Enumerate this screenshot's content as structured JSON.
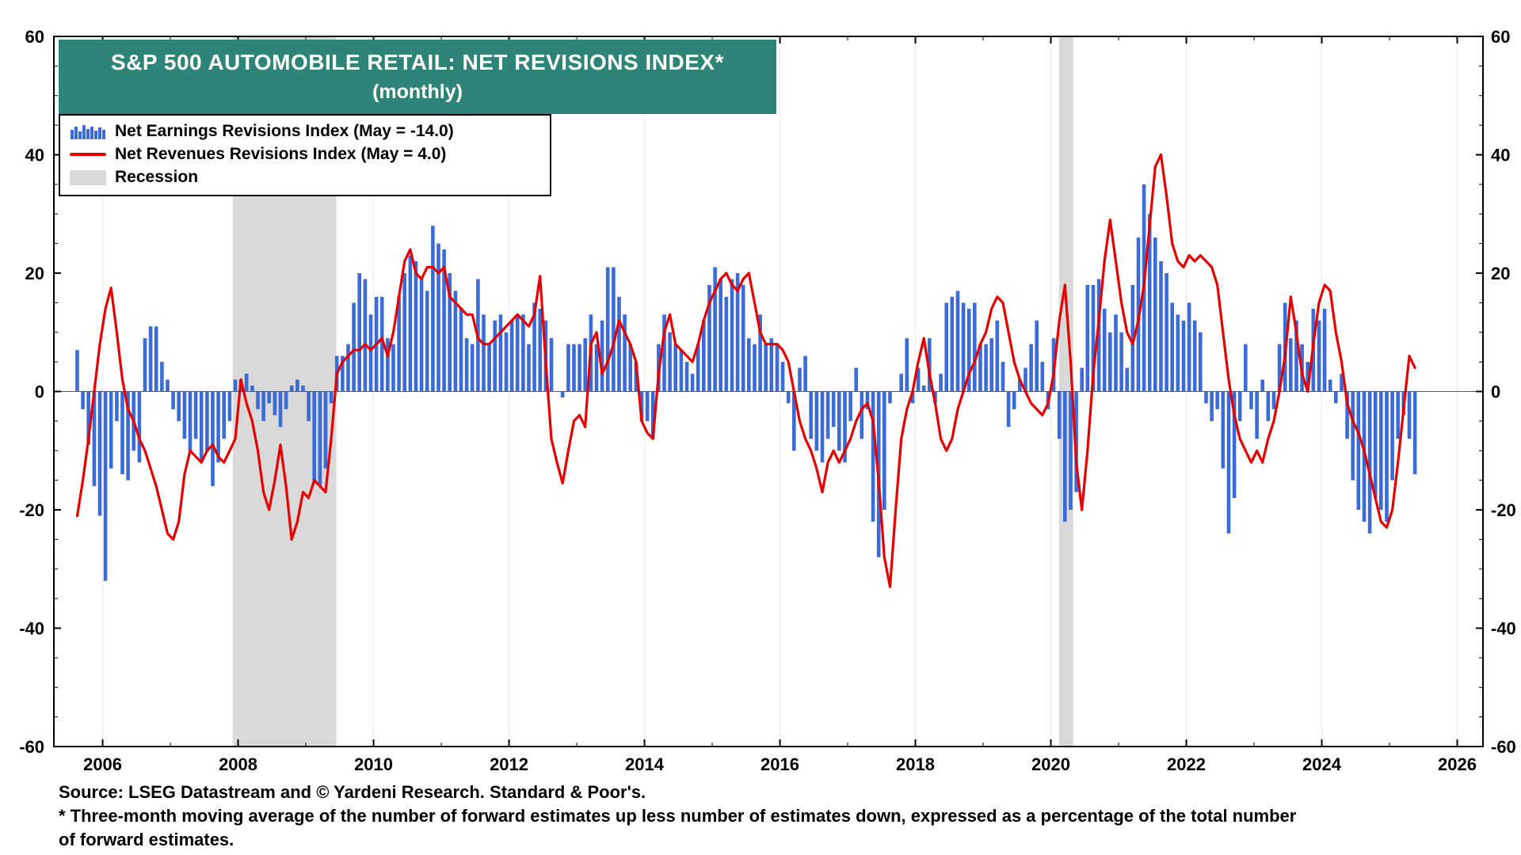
{
  "chart": {
    "title": "S&P 500 AUTOMOBILE RETAIL: NET REVISIONS INDEX*",
    "subtitle": "(monthly)",
    "title_bg": "#2E8476"
  },
  "legend": {
    "earnings_label": "Net Earnings Revisions Index (May  = -14.0)",
    "revenues_label": "Net Revenues Revisions Index (May  = 4.0)",
    "recession_label": "Recession"
  },
  "footer": {
    "source": "Source: LSEG Datastream and © Yardeni Research. Standard & Poor's.",
    "note1": "* Three-month moving average of the number of forward estimates up less number of estimates down, expressed as a percentage of the total number",
    "note2": " of forward estimates."
  },
  "chart_data": {
    "type": "bar",
    "title": "S&P 500 AUTOMOBILE RETAIL: NET REVISIONS INDEX* (monthly)",
    "frequency": "monthly",
    "start": {
      "year": 2005,
      "month": 8
    },
    "end": {
      "year": 2025,
      "month": 5
    },
    "ylim": [
      -60,
      60
    ],
    "y_major": 20,
    "y_minor": 5,
    "x_range": [
      2005.28,
      2026.38
    ],
    "x_label_years": [
      2006,
      2008,
      2010,
      2012,
      2014,
      2016,
      2018,
      2020,
      2022,
      2024,
      2026
    ],
    "grid": "light vertical lines at even years",
    "legend_position": "top-left",
    "recession_color": "#D9D9D9",
    "grid_color": "#ECECEC",
    "recessions": [
      [
        2007.92,
        2009.45
      ],
      [
        2020.12,
        2020.33
      ]
    ],
    "series": [
      {
        "name": "Net Earnings Revisions Index",
        "type": "bar",
        "color": "#3A6BD8",
        "latest_label": "May = -14.0",
        "values": [
          7,
          -3,
          -9,
          -16,
          -21,
          -32,
          -13,
          -5,
          -14,
          -15,
          -10,
          -12,
          9,
          11,
          11,
          5,
          2,
          -3,
          -5,
          -8,
          -10,
          -8,
          -12,
          -10,
          -16,
          -12,
          -8,
          -5,
          2,
          2,
          3,
          1,
          -3,
          -5,
          -2,
          -4,
          -6,
          -3,
          1,
          2,
          1,
          -5,
          -15,
          -16,
          -13,
          -2,
          6,
          6,
          8,
          15,
          20,
          19,
          13,
          16,
          16,
          9,
          8,
          16,
          20,
          23,
          22,
          19,
          17,
          28,
          25,
          24,
          20,
          17,
          14,
          9,
          8,
          19,
          13,
          8,
          12,
          13,
          10,
          12,
          13,
          13,
          8,
          15,
          14,
          12,
          9,
          0,
          -1,
          8,
          8,
          8,
          9,
          13,
          8,
          12,
          21,
          21,
          16,
          13,
          8,
          5,
          -5,
          -5,
          -8,
          8,
          13,
          10,
          8,
          7,
          5,
          3,
          8,
          12,
          18,
          21,
          19,
          16,
          19,
          20,
          18,
          9,
          8,
          13,
          8,
          9,
          8,
          5,
          -2,
          -10,
          4,
          6,
          -8,
          -10,
          -12,
          -8,
          -6,
          -10,
          -12,
          -5,
          4,
          -8,
          -3,
          -22,
          -28,
          -20,
          -2,
          0,
          3,
          9,
          -2,
          4,
          1,
          9,
          -2,
          3,
          15,
          16,
          17,
          15,
          14,
          15,
          8,
          8,
          9,
          12,
          5,
          -6,
          -3,
          2,
          4,
          8,
          12,
          5,
          -3,
          9,
          -8,
          -22,
          -20,
          -17,
          4,
          18,
          18,
          19,
          14,
          10,
          13,
          10,
          4,
          18,
          26,
          35,
          30,
          26,
          22,
          20,
          15,
          13,
          12,
          15,
          12,
          10,
          -2,
          -5,
          -3,
          -13,
          -24,
          -18,
          -5,
          8,
          -3,
          -8,
          2,
          -5,
          -3,
          8,
          15,
          9,
          12,
          8,
          5,
          14,
          12,
          14,
          2,
          -2,
          3,
          -8,
          -15,
          -20,
          -22,
          -24,
          -18,
          -20,
          -22,
          -15,
          -8,
          -4,
          -8,
          -14
        ]
      },
      {
        "name": "Net Revenues Revisions Index",
        "type": "line",
        "color": "#E60000",
        "latest_label": "May = 4.0",
        "values": [
          -21,
          -15,
          -8,
          0,
          8,
          14,
          17.5,
          10,
          2,
          -3,
          -5,
          -8,
          -10,
          -13,
          -16,
          -20,
          -24,
          -25,
          -22,
          -14,
          -10,
          -11,
          -12,
          -10,
          -9,
          -11,
          -12,
          -10,
          -8,
          2,
          -2,
          -5,
          -10,
          -17,
          -20,
          -15,
          -9,
          -16,
          -25,
          -22,
          -17,
          -18,
          -15,
          -16,
          -17,
          -8,
          3,
          5,
          6,
          7,
          7,
          8,
          7,
          8,
          9,
          6,
          10,
          16,
          22,
          24,
          20,
          19,
          21,
          21,
          20,
          21,
          16,
          15,
          14,
          13,
          13,
          9,
          8,
          8,
          9,
          10,
          11,
          12,
          13,
          12,
          11,
          13,
          19.5,
          5,
          -8,
          -12,
          -15.5,
          -10,
          -5,
          -4,
          -6,
          8,
          10,
          3,
          5,
          8,
          12,
          10,
          8,
          5,
          -5,
          -7,
          -8,
          3,
          10,
          13,
          8,
          7,
          6,
          5,
          8,
          12,
          15,
          17,
          19,
          20,
          18,
          17,
          19,
          20,
          15,
          10,
          8,
          8,
          8,
          7,
          5,
          0,
          -5,
          -8,
          -10,
          -13,
          -17,
          -12,
          -10,
          -12,
          -10,
          -8,
          -5,
          -3,
          -2,
          -5,
          -15,
          -28,
          -33,
          -20,
          -8,
          -3,
          0,
          5,
          9,
          3,
          -2,
          -8,
          -10,
          -8,
          -3,
          0,
          3,
          5,
          8,
          10,
          14,
          16,
          15,
          10,
          5,
          2,
          0,
          -2,
          -3,
          -4,
          -2,
          3,
          12,
          18,
          5,
          -12,
          -20,
          -10,
          3,
          12,
          22,
          29,
          22,
          15,
          10,
          8,
          12,
          18,
          28,
          38,
          40,
          33,
          25,
          22,
          21,
          23,
          22,
          23,
          22,
          21,
          18,
          10,
          2,
          -4,
          -8,
          -10,
          -12,
          -10,
          -12,
          -8,
          -5,
          0,
          6,
          16,
          10,
          3,
          0,
          8,
          15,
          18,
          17,
          10,
          5,
          -2,
          -5,
          -7,
          -10,
          -14,
          -18,
          -22,
          -23,
          -20,
          -12,
          -3,
          6,
          4
        ]
      }
    ]
  }
}
